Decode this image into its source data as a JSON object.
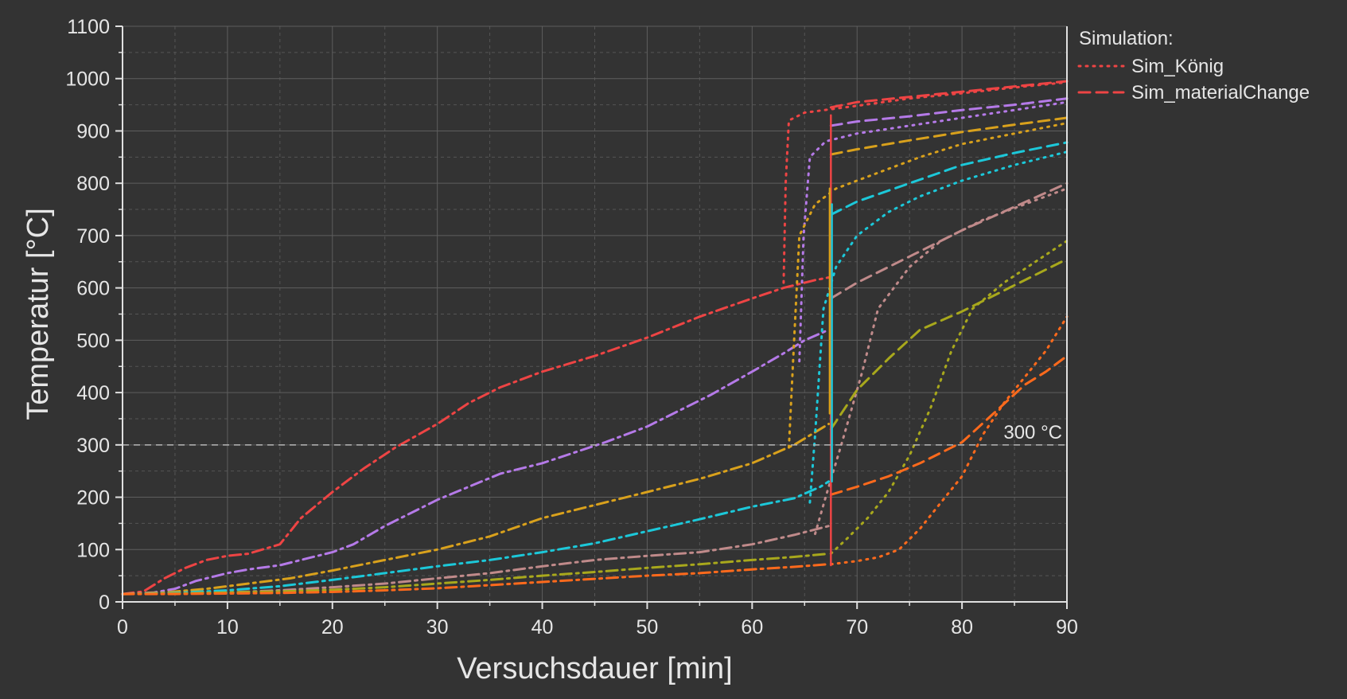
{
  "chart_data": {
    "type": "line",
    "xlabel": "Versuchsdauer [min]",
    "ylabel": "Temperatur [°C]",
    "xlim": [
      0,
      90
    ],
    "ylim": [
      0,
      1100
    ],
    "xticks": [
      0,
      10,
      20,
      30,
      40,
      50,
      60,
      70,
      80,
      90
    ],
    "yticks": [
      0,
      100,
      200,
      300,
      400,
      500,
      600,
      700,
      800,
      900,
      1000,
      1100
    ],
    "grid": true,
    "legend": {
      "title": "Simulation:",
      "placement": "top-right outside",
      "entries": [
        {
          "label": "Sim_König",
          "style": "dotted",
          "color": "#ee4444"
        },
        {
          "label": "Sim_materialChange",
          "style": "dashed",
          "color": "#ee4444"
        }
      ]
    },
    "annotations": [
      {
        "type": "hline",
        "y": 300,
        "color": "#bbbbbb",
        "style": "dashed",
        "label": "300 °C"
      }
    ],
    "series": [
      {
        "color": "#ee4444",
        "style": "dashdot",
        "points": [
          [
            0,
            15
          ],
          [
            2,
            20
          ],
          [
            4,
            45
          ],
          [
            6,
            65
          ],
          [
            8,
            80
          ],
          [
            10,
            88
          ],
          [
            12,
            92
          ],
          [
            15,
            110
          ],
          [
            17,
            160
          ],
          [
            20,
            210
          ],
          [
            23,
            255
          ],
          [
            26,
            295
          ],
          [
            30,
            340
          ],
          [
            33,
            380
          ],
          [
            36,
            410
          ],
          [
            40,
            440
          ],
          [
            45,
            470
          ],
          [
            50,
            505
          ],
          [
            55,
            545
          ],
          [
            60,
            580
          ],
          [
            63,
            600
          ],
          [
            66,
            615
          ],
          [
            67.3,
            620
          ]
        ]
      },
      {
        "color": "#ee4444",
        "style": "dashed",
        "points": [
          [
            67.5,
            945
          ],
          [
            70,
            955
          ],
          [
            75,
            965
          ],
          [
            80,
            975
          ],
          [
            85,
            985
          ],
          [
            90,
            995
          ]
        ]
      },
      {
        "color": "#ee4444",
        "style": "dotted",
        "points": [
          [
            63,
            610
          ],
          [
            63.2,
            800
          ],
          [
            63.5,
            920
          ],
          [
            65,
            935
          ],
          [
            70,
            948
          ],
          [
            75,
            962
          ],
          [
            80,
            972
          ],
          [
            85,
            983
          ],
          [
            90,
            993
          ]
        ]
      },
      {
        "color": "#b57ae8",
        "style": "dashdot",
        "points": [
          [
            0,
            15
          ],
          [
            3,
            18
          ],
          [
            5,
            25
          ],
          [
            7,
            40
          ],
          [
            10,
            55
          ],
          [
            12,
            62
          ],
          [
            15,
            70
          ],
          [
            18,
            85
          ],
          [
            20,
            95
          ],
          [
            22,
            110
          ],
          [
            25,
            145
          ],
          [
            28,
            175
          ],
          [
            30,
            195
          ],
          [
            33,
            220
          ],
          [
            36,
            245
          ],
          [
            40,
            265
          ],
          [
            43,
            285
          ],
          [
            46,
            305
          ],
          [
            50,
            335
          ],
          [
            53,
            365
          ],
          [
            56,
            395
          ],
          [
            60,
            440
          ],
          [
            63,
            475
          ],
          [
            65,
            500
          ],
          [
            67.3,
            520
          ]
        ]
      },
      {
        "color": "#b57ae8",
        "style": "dashed",
        "points": [
          [
            67.5,
            910
          ],
          [
            70,
            918
          ],
          [
            75,
            928
          ],
          [
            80,
            940
          ],
          [
            85,
            950
          ],
          [
            90,
            962
          ]
        ]
      },
      {
        "color": "#b57ae8",
        "style": "dotted",
        "points": [
          [
            64.5,
            460
          ],
          [
            64.9,
            700
          ],
          [
            65.5,
            850
          ],
          [
            67,
            880
          ],
          [
            70,
            895
          ],
          [
            75,
            910
          ],
          [
            80,
            925
          ],
          [
            85,
            940
          ],
          [
            90,
            955
          ]
        ]
      },
      {
        "color": "#d9a11c",
        "style": "dashdot",
        "points": [
          [
            0,
            15
          ],
          [
            4,
            18
          ],
          [
            8,
            25
          ],
          [
            12,
            35
          ],
          [
            16,
            45
          ],
          [
            20,
            60
          ],
          [
            25,
            80
          ],
          [
            30,
            100
          ],
          [
            35,
            125
          ],
          [
            40,
            160
          ],
          [
            45,
            185
          ],
          [
            50,
            210
          ],
          [
            55,
            235
          ],
          [
            60,
            265
          ],
          [
            64,
            300
          ],
          [
            67.3,
            340
          ]
        ]
      },
      {
        "color": "#d9a11c",
        "style": "dashed",
        "points": [
          [
            67.5,
            855
          ],
          [
            70,
            865
          ],
          [
            75,
            882
          ],
          [
            80,
            898
          ],
          [
            85,
            912
          ],
          [
            90,
            925
          ]
        ]
      },
      {
        "color": "#d9a11c",
        "style": "dotted",
        "points": [
          [
            63.5,
            295
          ],
          [
            64,
            500
          ],
          [
            64.5,
            700
          ],
          [
            66,
            760
          ],
          [
            68,
            790
          ],
          [
            72,
            820
          ],
          [
            76,
            850
          ],
          [
            80,
            875
          ],
          [
            85,
            895
          ],
          [
            90,
            915
          ]
        ]
      },
      {
        "color": "#1cc8d9",
        "style": "dashdot",
        "points": [
          [
            0,
            15
          ],
          [
            5,
            17
          ],
          [
            10,
            22
          ],
          [
            15,
            30
          ],
          [
            20,
            42
          ],
          [
            25,
            55
          ],
          [
            30,
            68
          ],
          [
            35,
            80
          ],
          [
            40,
            95
          ],
          [
            45,
            112
          ],
          [
            50,
            135
          ],
          [
            55,
            158
          ],
          [
            60,
            182
          ],
          [
            64,
            198
          ],
          [
            66.5,
            220
          ],
          [
            67.3,
            230
          ]
        ]
      },
      {
        "color": "#1cc8d9",
        "style": "dashed",
        "points": [
          [
            67.5,
            740
          ],
          [
            70,
            765
          ],
          [
            75,
            800
          ],
          [
            80,
            835
          ],
          [
            85,
            858
          ],
          [
            90,
            878
          ]
        ]
      },
      {
        "color": "#1cc8d9",
        "style": "dotted",
        "points": [
          [
            65.5,
            190
          ],
          [
            66,
            320
          ],
          [
            66.8,
            560
          ],
          [
            68,
            640
          ],
          [
            70,
            700
          ],
          [
            73,
            745
          ],
          [
            76,
            775
          ],
          [
            80,
            805
          ],
          [
            85,
            835
          ],
          [
            90,
            860
          ]
        ]
      },
      {
        "color": "#c08a8a",
        "style": "dashdot",
        "points": [
          [
            0,
            15
          ],
          [
            5,
            16
          ],
          [
            10,
            18
          ],
          [
            15,
            22
          ],
          [
            20,
            28
          ],
          [
            25,
            35
          ],
          [
            30,
            45
          ],
          [
            35,
            55
          ],
          [
            40,
            68
          ],
          [
            45,
            80
          ],
          [
            50,
            88
          ],
          [
            55,
            95
          ],
          [
            60,
            110
          ],
          [
            64,
            128
          ],
          [
            67.3,
            145
          ]
        ]
      },
      {
        "color": "#c08a8a",
        "style": "dashed",
        "points": [
          [
            67.5,
            580
          ],
          [
            70,
            610
          ],
          [
            75,
            660
          ],
          [
            80,
            710
          ],
          [
            85,
            755
          ],
          [
            90,
            800
          ]
        ]
      },
      {
        "color": "#c08a8a",
        "style": "dotted",
        "points": [
          [
            66,
            130
          ],
          [
            67,
            200
          ],
          [
            68.5,
            300
          ],
          [
            70.5,
            440
          ],
          [
            72,
            560
          ],
          [
            75,
            640
          ],
          [
            78,
            690
          ],
          [
            82,
            730
          ],
          [
            86,
            760
          ],
          [
            90,
            790
          ]
        ]
      },
      {
        "color": "#a8a81c",
        "style": "dashdot",
        "points": [
          [
            0,
            15
          ],
          [
            5,
            16
          ],
          [
            10,
            18
          ],
          [
            15,
            20
          ],
          [
            20,
            23
          ],
          [
            25,
            28
          ],
          [
            30,
            35
          ],
          [
            35,
            42
          ],
          [
            40,
            50
          ],
          [
            45,
            57
          ],
          [
            50,
            65
          ],
          [
            55,
            72
          ],
          [
            60,
            80
          ],
          [
            64,
            86
          ],
          [
            67.3,
            92
          ]
        ]
      },
      {
        "color": "#a8a81c",
        "style": "dashed",
        "points": [
          [
            67.5,
            330
          ],
          [
            70,
            405
          ],
          [
            73,
            465
          ],
          [
            76,
            520
          ],
          [
            80,
            555
          ],
          [
            84,
            595
          ],
          [
            87,
            625
          ],
          [
            90,
            655
          ]
        ]
      },
      {
        "color": "#a8a81c",
        "style": "dotted",
        "points": [
          [
            67.5,
            92
          ],
          [
            69,
            120
          ],
          [
            71,
            160
          ],
          [
            73,
            210
          ],
          [
            75,
            280
          ],
          [
            77,
            370
          ],
          [
            79,
            480
          ],
          [
            81,
            560
          ],
          [
            84,
            610
          ],
          [
            87,
            650
          ],
          [
            90,
            690
          ]
        ]
      },
      {
        "color": "#ff6a1c",
        "style": "dashdot",
        "points": [
          [
            0,
            15
          ],
          [
            5,
            15
          ],
          [
            10,
            16
          ],
          [
            15,
            17
          ],
          [
            20,
            19
          ],
          [
            25,
            22
          ],
          [
            30,
            26
          ],
          [
            35,
            32
          ],
          [
            40,
            38
          ],
          [
            45,
            44
          ],
          [
            50,
            50
          ],
          [
            55,
            55
          ],
          [
            60,
            62
          ],
          [
            64,
            67
          ],
          [
            67.3,
            72
          ]
        ]
      },
      {
        "color": "#ff6a1c",
        "style": "dashed",
        "points": [
          [
            67.5,
            205
          ],
          [
            70,
            220
          ],
          [
            73,
            240
          ],
          [
            76,
            265
          ],
          [
            80,
            305
          ],
          [
            83,
            360
          ],
          [
            86,
            415
          ],
          [
            88,
            440
          ],
          [
            90,
            470
          ]
        ]
      },
      {
        "color": "#ff6a1c",
        "style": "dotted",
        "points": [
          [
            67.5,
            72
          ],
          [
            70,
            78
          ],
          [
            72,
            85
          ],
          [
            74,
            100
          ],
          [
            76,
            140
          ],
          [
            78,
            190
          ],
          [
            80,
            240
          ],
          [
            82,
            320
          ],
          [
            84,
            380
          ],
          [
            86,
            430
          ],
          [
            88,
            480
          ],
          [
            90,
            545
          ]
        ]
      },
      {
        "color": "#ee4444",
        "style": "solid",
        "points": [
          [
            67.5,
            70
          ],
          [
            67.5,
            930
          ]
        ]
      },
      {
        "color": "#1cc8d9",
        "style": "solid",
        "points": [
          [
            67.6,
            230
          ],
          [
            67.6,
            760
          ]
        ]
      },
      {
        "color": "#d9a11c",
        "style": "solid",
        "points": [
          [
            67.4,
            360
          ],
          [
            67.4,
            790
          ]
        ]
      }
    ]
  }
}
